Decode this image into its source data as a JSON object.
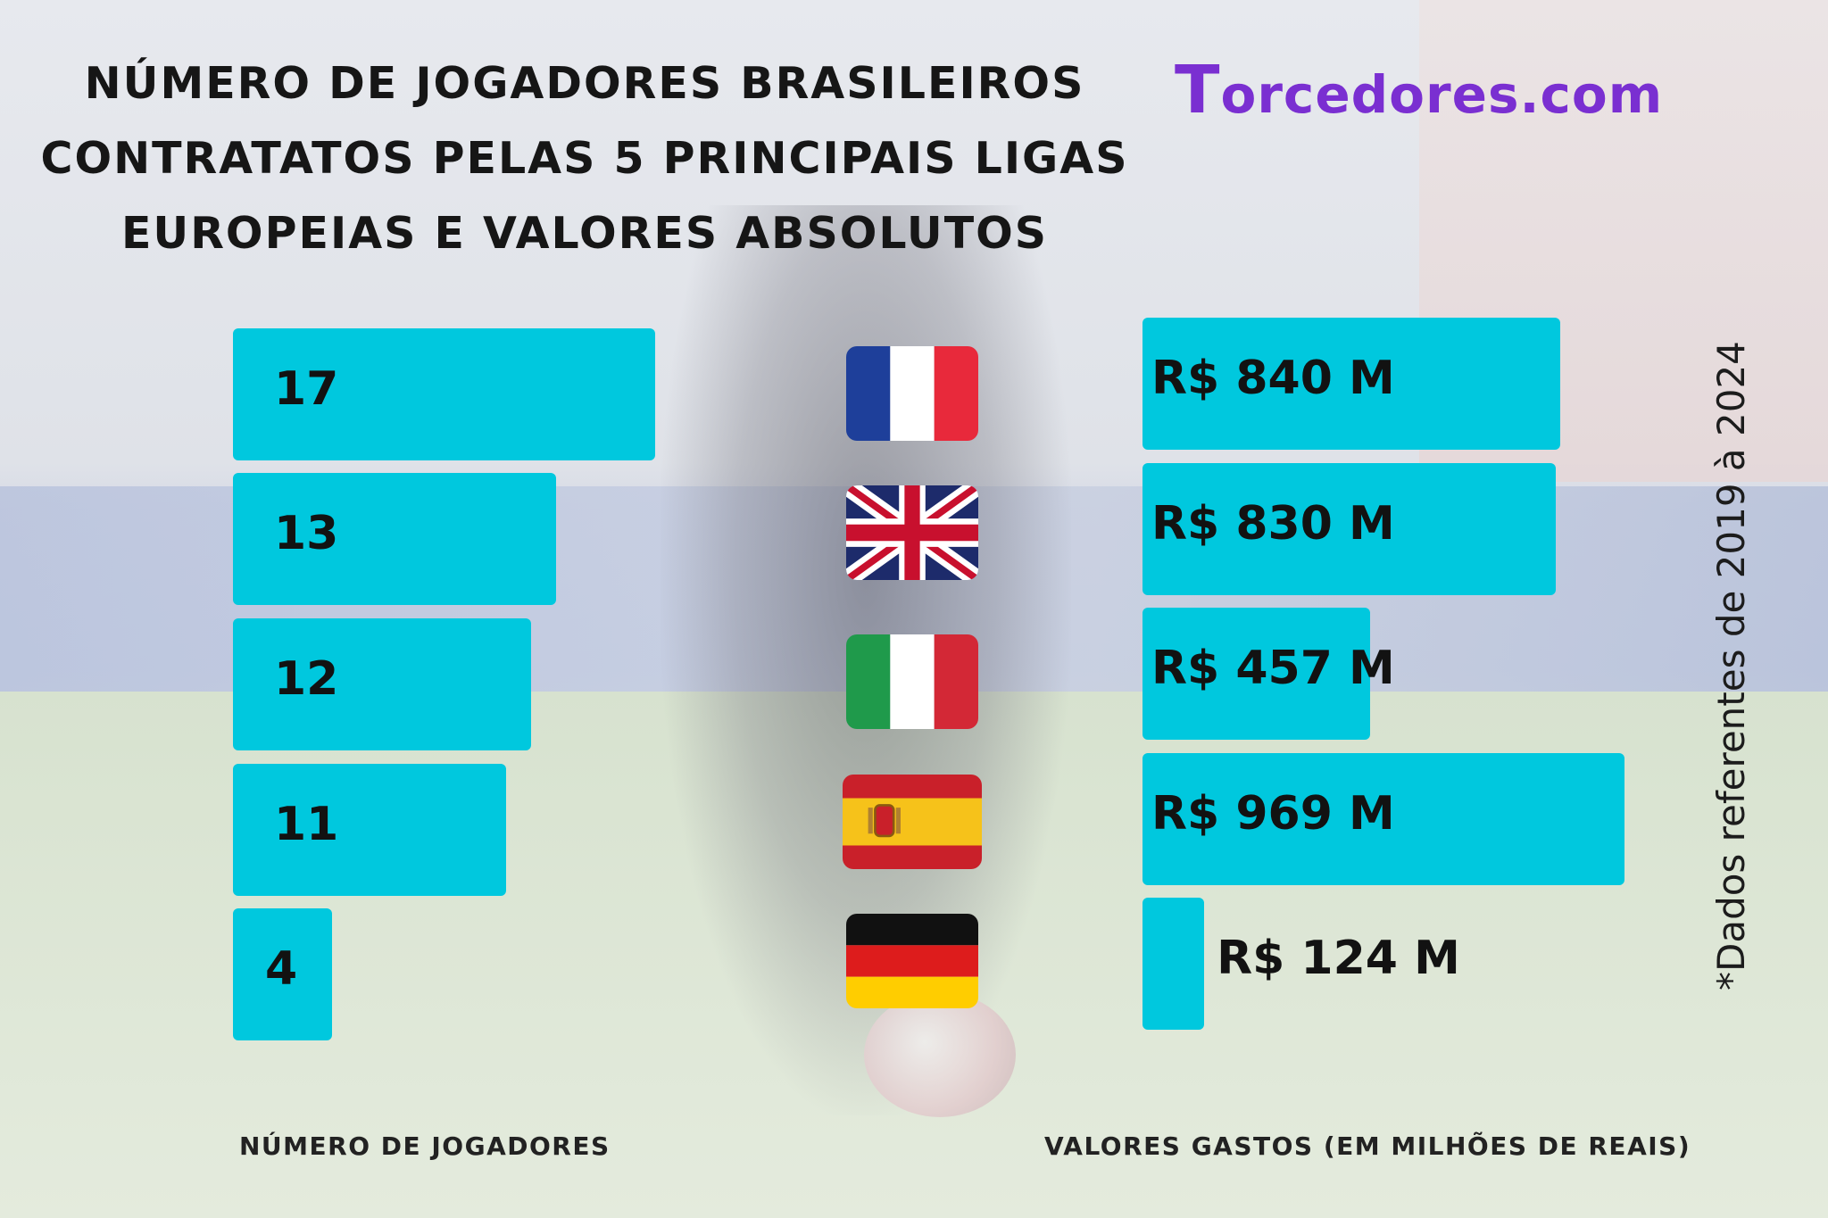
{
  "title": {
    "line1": "Número de jogadores brasileiros",
    "line2": "contratatos pelas 5 principais ligas",
    "line3": "europeias e valores absolutos"
  },
  "logo": {
    "first": "T",
    "rest": "orcedores.com"
  },
  "note": "*Dados referentes de 2019 à 2024",
  "colors": {
    "bar": "#00c8de",
    "logo": "#7a2fd1",
    "text": "#161616"
  },
  "chart_data": [
    {
      "type": "bar",
      "orientation": "horizontal",
      "categories": [
        "France",
        "England",
        "Italy",
        "Spain",
        "Germany"
      ],
      "category_icons": [
        "france-flag-icon",
        "uk-flag-icon",
        "italy-flag-icon",
        "spain-flag-icon",
        "germany-flag-icon"
      ],
      "values": [
        17,
        13,
        12,
        11,
        4
      ],
      "labels": [
        "17",
        "13",
        "12",
        "11",
        "4"
      ],
      "xlabel": "Número de jogadores",
      "xlim": [
        0,
        17
      ]
    },
    {
      "type": "bar",
      "orientation": "horizontal",
      "categories": [
        "France",
        "England",
        "Italy",
        "Spain",
        "Germany"
      ],
      "values": [
        840,
        830,
        457,
        969,
        124
      ],
      "labels": [
        "R$ 840 M",
        "R$ 830 M",
        "R$ 457 M",
        "R$ 969 M",
        "R$ 124 M"
      ],
      "xlabel": "Valores gastos (em milhões de reais)",
      "xlim": [
        0,
        969
      ]
    }
  ]
}
